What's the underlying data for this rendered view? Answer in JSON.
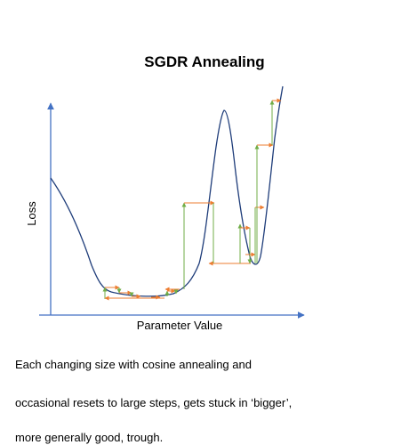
{
  "title": "SGDR Annealing",
  "axes": {
    "xlabel": "Parameter Value",
    "ylabel": "Loss"
  },
  "caption": {
    "line1": "Each changing size with cosine annealing and",
    "line2": "occasional resets to large steps, gets stuck in  ‘bigger’,",
    "line3": "more generally good, trough."
  },
  "colors": {
    "axes": "#4472c4",
    "curve": "#1f3d7a",
    "step_horizontal": "#ed7d31",
    "step_vertical": "#70ad47"
  }
}
